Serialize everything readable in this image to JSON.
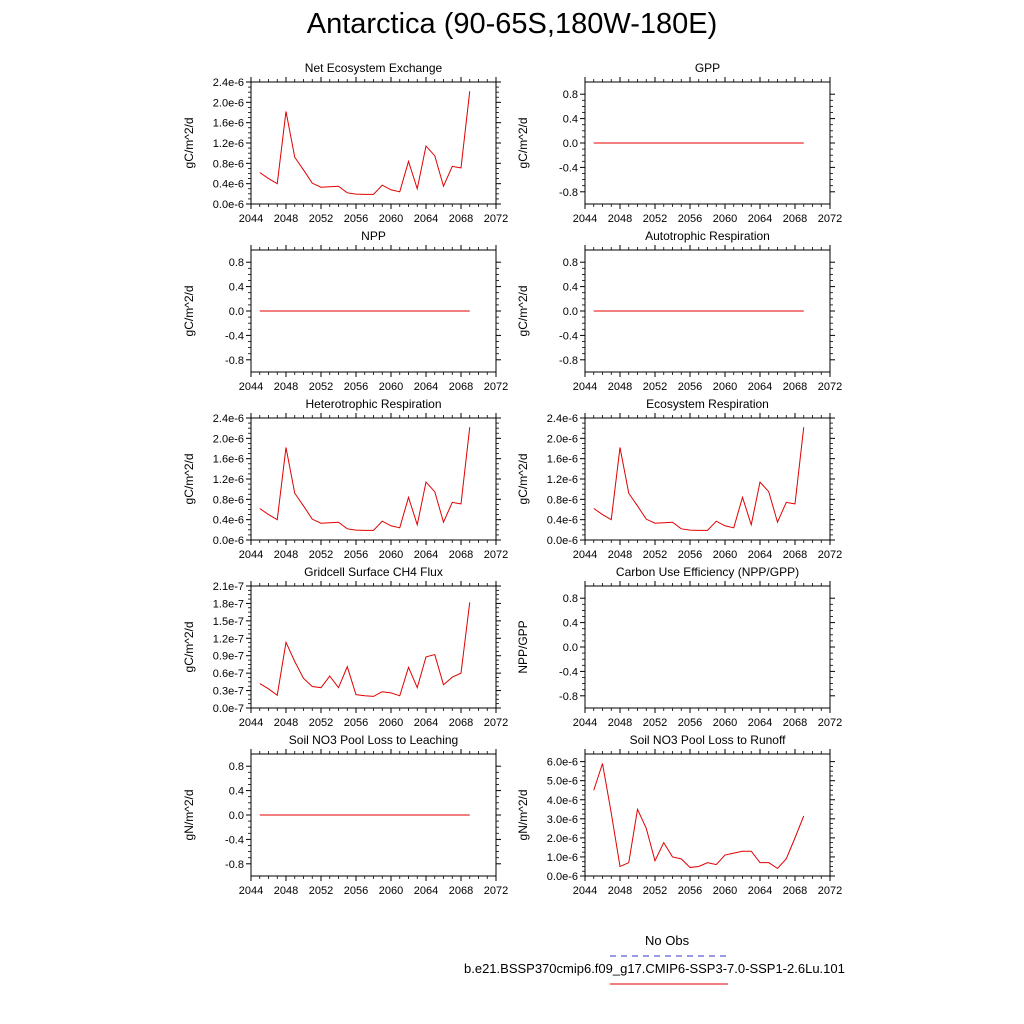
{
  "page": {
    "title": "Antarctica (90-65S,180W-180E)"
  },
  "legend": {
    "entries": [
      {
        "label": "No Obs",
        "color": "#3333cc",
        "style": "dashed"
      },
      {
        "label": "b.e21.BSSP370cmip6.f09_g17.CMIP6-SSP3-7.0-SSP1-2.6Lu.101",
        "color": "#e00000",
        "style": "solid"
      }
    ]
  },
  "chart_data": [
    {
      "type": "line",
      "title": "Net Ecosystem Exchange",
      "ylabel": "gC/m^2/d",
      "xlim": [
        2044,
        2072
      ],
      "xticks": [
        "2044",
        "2048",
        "2052",
        "2056",
        "2060",
        "2064",
        "2068",
        "2072"
      ],
      "ylim": [
        0,
        2.4e-06
      ],
      "yticks": [
        0,
        4e-07,
        8e-07,
        1.2e-06,
        1.6e-06,
        2e-06,
        2.4e-06
      ],
      "ytick_labels": [
        "0.0e-6",
        "0.4e-6",
        "0.8e-6",
        "1.2e-6",
        "1.6e-6",
        "2.0e-6",
        "2.4e-6"
      ],
      "color": "#e00000",
      "x": [
        2045,
        2046,
        2047,
        2048,
        2049,
        2050,
        2051,
        2052,
        2053,
        2054,
        2055,
        2056,
        2057,
        2058,
        2059,
        2060,
        2061,
        2062,
        2063,
        2064,
        2065,
        2066,
        2067,
        2068,
        2069
      ],
      "y": [
        6.2e-07,
        5e-07,
        4e-07,
        1.82e-06,
        9.2e-07,
        6.7e-07,
        4.1e-07,
        3.3e-07,
        3.4e-07,
        3.5e-07,
        2.2e-07,
        1.95e-07,
        1.9e-07,
        1.9e-07,
        3.7e-07,
        2.8e-07,
        2.4e-07,
        8.4e-07,
        3e-07,
        1.14e-06,
        9.5e-07,
        3.5e-07,
        7.4e-07,
        7.1e-07,
        2.22e-06
      ]
    },
    {
      "type": "line",
      "title": "GPP",
      "ylabel": "gC/m^2/d",
      "xlim": [
        2044,
        2072
      ],
      "xticks": [
        "2044",
        "2048",
        "2052",
        "2056",
        "2060",
        "2064",
        "2068",
        "2072"
      ],
      "ylim": [
        -1.0,
        1.0
      ],
      "yticks": [
        -0.8,
        -0.4,
        0.0,
        0.4,
        0.8
      ],
      "ytick_labels": [
        "-0.8",
        "-0.4",
        "0.0",
        "0.4",
        "0.8"
      ],
      "color": "#e00000",
      "x": [
        2045,
        2069
      ],
      "y": [
        0,
        0
      ]
    },
    {
      "type": "line",
      "title": "NPP",
      "ylabel": "gC/m^2/d",
      "xlim": [
        2044,
        2072
      ],
      "xticks": [
        "2044",
        "2048",
        "2052",
        "2056",
        "2060",
        "2064",
        "2068",
        "2072"
      ],
      "ylim": [
        -1.0,
        1.0
      ],
      "yticks": [
        -0.8,
        -0.4,
        0.0,
        0.4,
        0.8
      ],
      "ytick_labels": [
        "-0.8",
        "-0.4",
        "0.0",
        "0.4",
        "0.8"
      ],
      "color": "#e00000",
      "x": [
        2045,
        2069
      ],
      "y": [
        0,
        0
      ]
    },
    {
      "type": "line",
      "title": "Autotrophic Respiration",
      "ylabel": "gC/m^2/d",
      "xlim": [
        2044,
        2072
      ],
      "xticks": [
        "2044",
        "2048",
        "2052",
        "2056",
        "2060",
        "2064",
        "2068",
        "2072"
      ],
      "ylim": [
        -1.0,
        1.0
      ],
      "yticks": [
        -0.8,
        -0.4,
        0.0,
        0.4,
        0.8
      ],
      "ytick_labels": [
        "-0.8",
        "-0.4",
        "0.0",
        "0.4",
        "0.8"
      ],
      "color": "#e00000",
      "x": [
        2045,
        2069
      ],
      "y": [
        0,
        0
      ]
    },
    {
      "type": "line",
      "title": "Heterotrophic Respiration",
      "ylabel": "gC/m^2/d",
      "xlim": [
        2044,
        2072
      ],
      "xticks": [
        "2044",
        "2048",
        "2052",
        "2056",
        "2060",
        "2064",
        "2068",
        "2072"
      ],
      "ylim": [
        0,
        2.4e-06
      ],
      "yticks": [
        0,
        4e-07,
        8e-07,
        1.2e-06,
        1.6e-06,
        2e-06,
        2.4e-06
      ],
      "ytick_labels": [
        "0.0e-6",
        "0.4e-6",
        "0.8e-6",
        "1.2e-6",
        "1.6e-6",
        "2.0e-6",
        "2.4e-6"
      ],
      "color": "#e00000",
      "x": [
        2045,
        2046,
        2047,
        2048,
        2049,
        2050,
        2051,
        2052,
        2053,
        2054,
        2055,
        2056,
        2057,
        2058,
        2059,
        2060,
        2061,
        2062,
        2063,
        2064,
        2065,
        2066,
        2067,
        2068,
        2069
      ],
      "y": [
        6.2e-07,
        5e-07,
        4e-07,
        1.82e-06,
        9.2e-07,
        6.7e-07,
        4.1e-07,
        3.3e-07,
        3.4e-07,
        3.5e-07,
        2.2e-07,
        1.95e-07,
        1.9e-07,
        1.9e-07,
        3.7e-07,
        2.8e-07,
        2.4e-07,
        8.4e-07,
        3e-07,
        1.14e-06,
        9.5e-07,
        3.5e-07,
        7.4e-07,
        7.1e-07,
        2.22e-06
      ]
    },
    {
      "type": "line",
      "title": "Ecosystem Respiration",
      "ylabel": "gC/m^2/d",
      "xlim": [
        2044,
        2072
      ],
      "xticks": [
        "2044",
        "2048",
        "2052",
        "2056",
        "2060",
        "2064",
        "2068",
        "2072"
      ],
      "ylim": [
        0,
        2.4e-06
      ],
      "yticks": [
        0,
        4e-07,
        8e-07,
        1.2e-06,
        1.6e-06,
        2e-06,
        2.4e-06
      ],
      "ytick_labels": [
        "0.0e-6",
        "0.4e-6",
        "0.8e-6",
        "1.2e-6",
        "1.6e-6",
        "2.0e-6",
        "2.4e-6"
      ],
      "color": "#e00000",
      "x": [
        2045,
        2046,
        2047,
        2048,
        2049,
        2050,
        2051,
        2052,
        2053,
        2054,
        2055,
        2056,
        2057,
        2058,
        2059,
        2060,
        2061,
        2062,
        2063,
        2064,
        2065,
        2066,
        2067,
        2068,
        2069
      ],
      "y": [
        6.2e-07,
        5e-07,
        4e-07,
        1.82e-06,
        9.2e-07,
        6.7e-07,
        4.1e-07,
        3.3e-07,
        3.4e-07,
        3.5e-07,
        2.2e-07,
        1.95e-07,
        1.9e-07,
        1.9e-07,
        3.7e-07,
        2.8e-07,
        2.4e-07,
        8.4e-07,
        3e-07,
        1.14e-06,
        9.5e-07,
        3.5e-07,
        7.4e-07,
        7.1e-07,
        2.22e-06
      ]
    },
    {
      "type": "line",
      "title": "Gridcell Surface CH4 Flux",
      "ylabel": "gC/m^2/d",
      "xlim": [
        2044,
        2072
      ],
      "xticks": [
        "2044",
        "2048",
        "2052",
        "2056",
        "2060",
        "2064",
        "2068",
        "2072"
      ],
      "ylim": [
        0,
        2.1e-07
      ],
      "yticks": [
        0,
        3e-08,
        6e-08,
        9e-08,
        1.2e-07,
        1.5e-07,
        1.8e-07,
        2.1e-07
      ],
      "ytick_labels": [
        "0.0e-7",
        "0.3e-7",
        "0.6e-7",
        "0.9e-7",
        "1.2e-7",
        "1.5e-7",
        "1.8e-7",
        "2.1e-7"
      ],
      "color": "#e00000",
      "x": [
        2045,
        2046,
        2047,
        2048,
        2049,
        2050,
        2051,
        2052,
        2053,
        2054,
        2055,
        2056,
        2057,
        2058,
        2059,
        2060,
        2061,
        2062,
        2063,
        2064,
        2065,
        2066,
        2067,
        2068,
        2069
      ],
      "y": [
        4.2e-08,
        3.3e-08,
        2.2e-08,
        1.13e-07,
        8e-08,
        5.1e-08,
        3.7e-08,
        3.5e-08,
        5.5e-08,
        3.5e-08,
        7.1e-08,
        2.3e-08,
        2.1e-08,
        2e-08,
        2.8e-08,
        2.6e-08,
        2.1e-08,
        7e-08,
        3.5e-08,
        8.8e-08,
        9.2e-08,
        4e-08,
        5.3e-08,
        6e-08,
        1.82e-07
      ]
    },
    {
      "type": "line",
      "title": "Carbon Use Efficiency (NPP/GPP)",
      "ylabel": "NPP/GPP",
      "xlim": [
        2044,
        2072
      ],
      "xticks": [
        "2044",
        "2048",
        "2052",
        "2056",
        "2060",
        "2064",
        "2068",
        "2072"
      ],
      "ylim": [
        -1.0,
        1.0
      ],
      "yticks": [
        -0.8,
        -0.4,
        0.0,
        0.4,
        0.8
      ],
      "ytick_labels": [
        "-0.8",
        "-0.4",
        "0.0",
        "0.4",
        "0.8"
      ],
      "color": "#e00000",
      "x": [],
      "y": []
    },
    {
      "type": "line",
      "title": "Soil NO3 Pool Loss to Leaching",
      "ylabel": "gN/m^2/d",
      "xlim": [
        2044,
        2072
      ],
      "xticks": [
        "2044",
        "2048",
        "2052",
        "2056",
        "2060",
        "2064",
        "2068",
        "2072"
      ],
      "ylim": [
        -1.0,
        1.0
      ],
      "yticks": [
        -0.8,
        -0.4,
        0.0,
        0.4,
        0.8
      ],
      "ytick_labels": [
        "-0.8",
        "-0.4",
        "0.0",
        "0.4",
        "0.8"
      ],
      "color": "#e00000",
      "x": [
        2045,
        2069
      ],
      "y": [
        0,
        0
      ]
    },
    {
      "type": "line",
      "title": "Soil NO3 Pool Loss to Runoff",
      "ylabel": "gN/m^2/d",
      "xlim": [
        2044,
        2072
      ],
      "xticks": [
        "2044",
        "2048",
        "2052",
        "2056",
        "2060",
        "2064",
        "2068",
        "2072"
      ],
      "ylim": [
        0,
        6.4e-06
      ],
      "yticks": [
        0,
        1e-06,
        2e-06,
        3e-06,
        4e-06,
        5e-06,
        6e-06
      ],
      "ytick_labels": [
        "0.0e-6",
        "1.0e-6",
        "2.0e-6",
        "3.0e-6",
        "4.0e-6",
        "5.0e-6",
        "6.0e-6"
      ],
      "color": "#e00000",
      "x": [
        2045,
        2046,
        2047,
        2048,
        2049,
        2050,
        2051,
        2052,
        2053,
        2054,
        2055,
        2056,
        2057,
        2058,
        2059,
        2060,
        2061,
        2062,
        2063,
        2064,
        2065,
        2066,
        2067,
        2068,
        2069
      ],
      "y": [
        4.5e-06,
        5.9e-06,
        3.3e-06,
        5e-07,
        7e-07,
        3.5e-06,
        2.5e-06,
        8e-07,
        1.75e-06,
        1e-06,
        9e-07,
        4.5e-07,
        5e-07,
        7e-07,
        6e-07,
        1.1e-06,
        1.2e-06,
        1.3e-06,
        1.3e-06,
        7e-07,
        7e-07,
        4e-07,
        9e-07,
        2e-06,
        3.15e-06
      ]
    }
  ]
}
